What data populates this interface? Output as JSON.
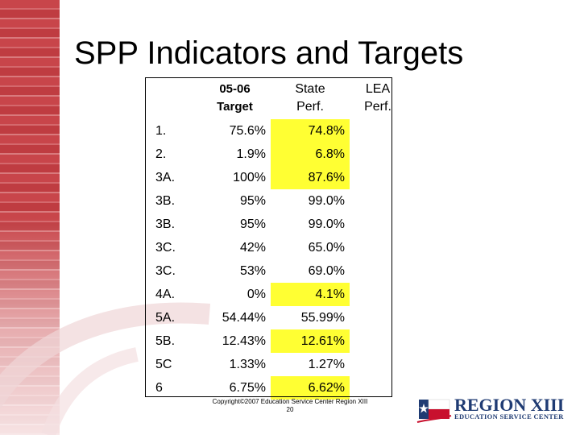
{
  "title": "SPP Indicators and Targets",
  "table": {
    "headers": {
      "target": "05-06 Target",
      "state": "State Perf.",
      "lea": "LEA Perf."
    },
    "rows": [
      {
        "id": "1.",
        "target": "75.6%",
        "state": "74.8%",
        "state_highlight": true,
        "lea": ""
      },
      {
        "id": "2.",
        "target": "1.9%",
        "state": "6.8%",
        "state_highlight": true,
        "lea": ""
      },
      {
        "id": "3A.",
        "target": "100%",
        "state": "87.6%",
        "state_highlight": true,
        "lea": ""
      },
      {
        "id": "3B.",
        "target": "95%",
        "state": "99.0%",
        "state_highlight": false,
        "lea": ""
      },
      {
        "id": "3B.",
        "target": "95%",
        "state": "99.0%",
        "state_highlight": false,
        "lea": ""
      },
      {
        "id": "3C.",
        "target": "42%",
        "state": "65.0%",
        "state_highlight": false,
        "lea": ""
      },
      {
        "id": "3C.",
        "target": "53%",
        "state": "69.0%",
        "state_highlight": false,
        "lea": ""
      },
      {
        "id": "4A.",
        "target": "0%",
        "state": "4.1%",
        "state_highlight": true,
        "lea": ""
      },
      {
        "id": "5A.",
        "target": "54.44%",
        "state": "55.99%",
        "state_highlight": false,
        "lea": ""
      },
      {
        "id": "5B.",
        "target": "12.43%",
        "state": "12.61%",
        "state_highlight": true,
        "lea": ""
      },
      {
        "id": "5C",
        "target": "1.33%",
        "state": "1.27%",
        "state_highlight": false,
        "lea": ""
      },
      {
        "id": "6",
        "target": "6.75%",
        "state": "6.62%",
        "state_highlight": true,
        "lea": ""
      }
    ]
  },
  "footer": {
    "copyright": "Copyright©2007 Education Service Center Region XIII",
    "page_number": "20"
  },
  "logo": {
    "title": "REGION XIII",
    "subtitle": "EDUCATION SERVICE CENTER"
  },
  "colors": {
    "highlight": "#ffff33",
    "band": "#c8454a",
    "logo_blue": "#1f3b73"
  }
}
